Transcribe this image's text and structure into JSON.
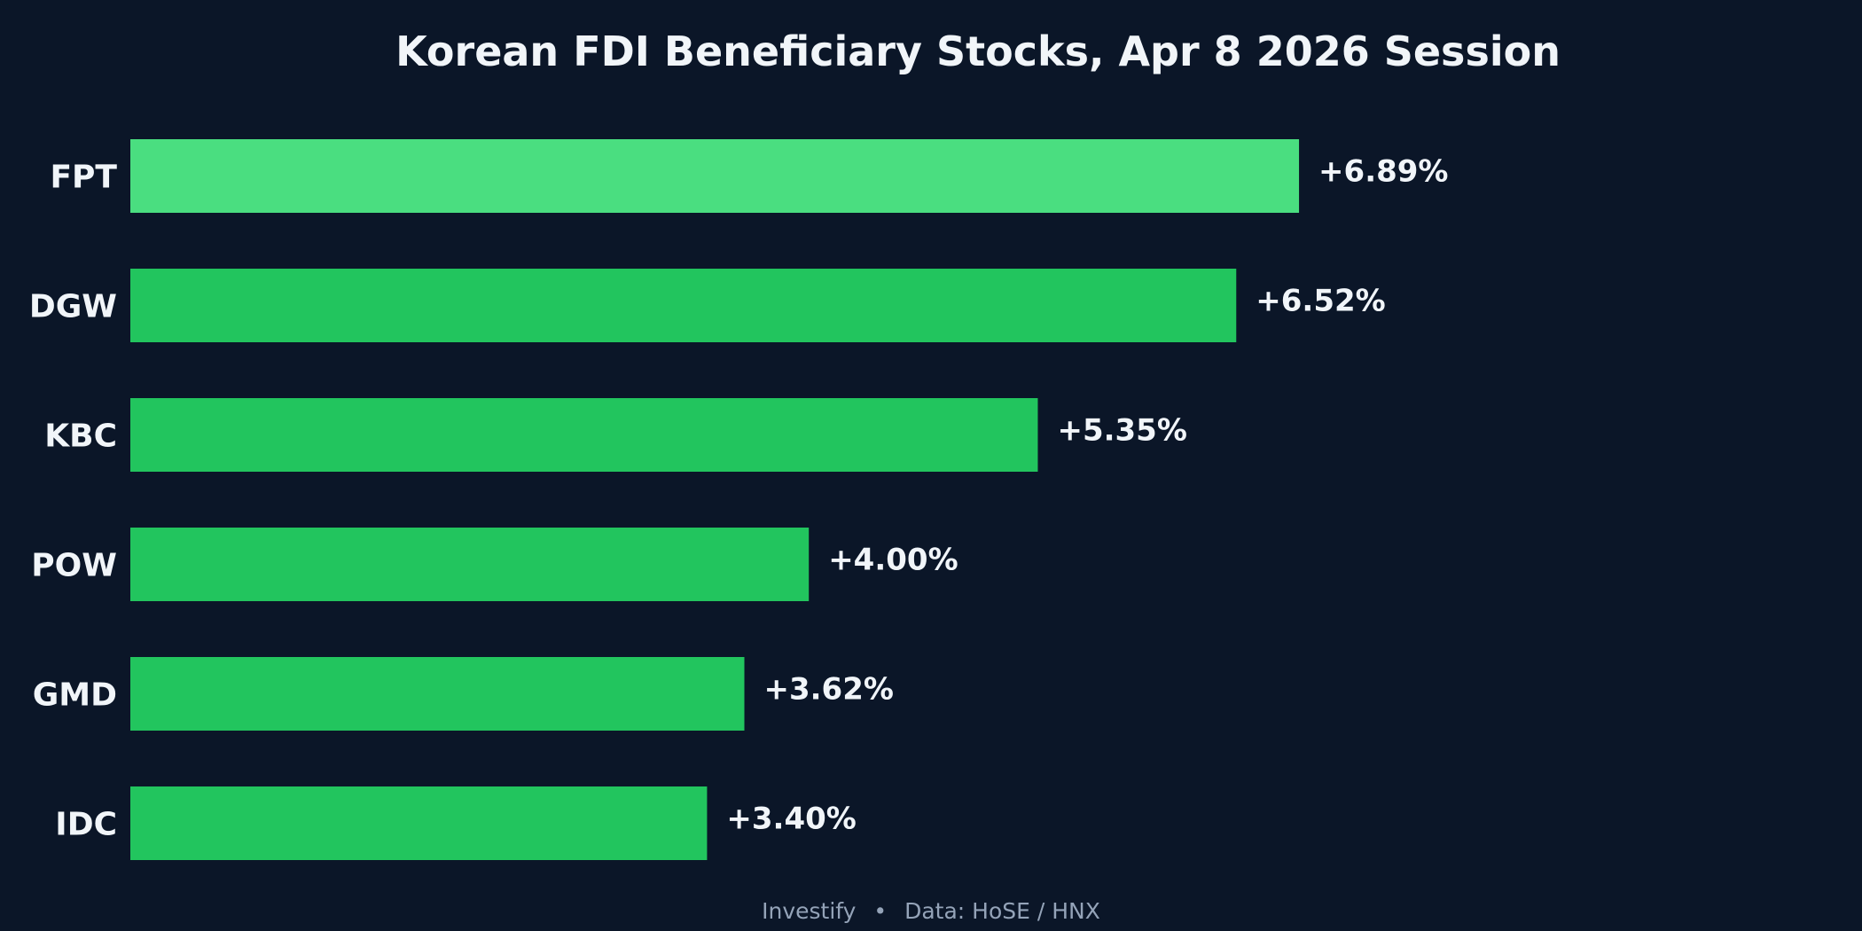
{
  "chart_data": {
    "type": "bar",
    "orientation": "horizontal",
    "title": "Korean FDI Beneficiary Stocks, Apr 8 2026 Session",
    "categories": [
      "FPT",
      "DGW",
      "KBC",
      "POW",
      "GMD",
      "IDC"
    ],
    "values": [
      6.89,
      6.52,
      5.35,
      4.0,
      3.62,
      3.4
    ],
    "value_labels": [
      "+6.89%",
      "+6.52%",
      "+5.35%",
      "+4.00%",
      "+3.62%",
      "+3.40%"
    ],
    "unit": "%",
    "xlim": [
      0,
      11
    ],
    "grid": false,
    "colors": {
      "background": "#0b1628",
      "highlight_bar": "#4ade80",
      "bar": "#22c55e",
      "text": "#f1f5f9",
      "footer": "#94a3b8"
    }
  },
  "footer": {
    "brand": "Investify",
    "separator": "•",
    "source": "Data: HoSE / HNX"
  }
}
